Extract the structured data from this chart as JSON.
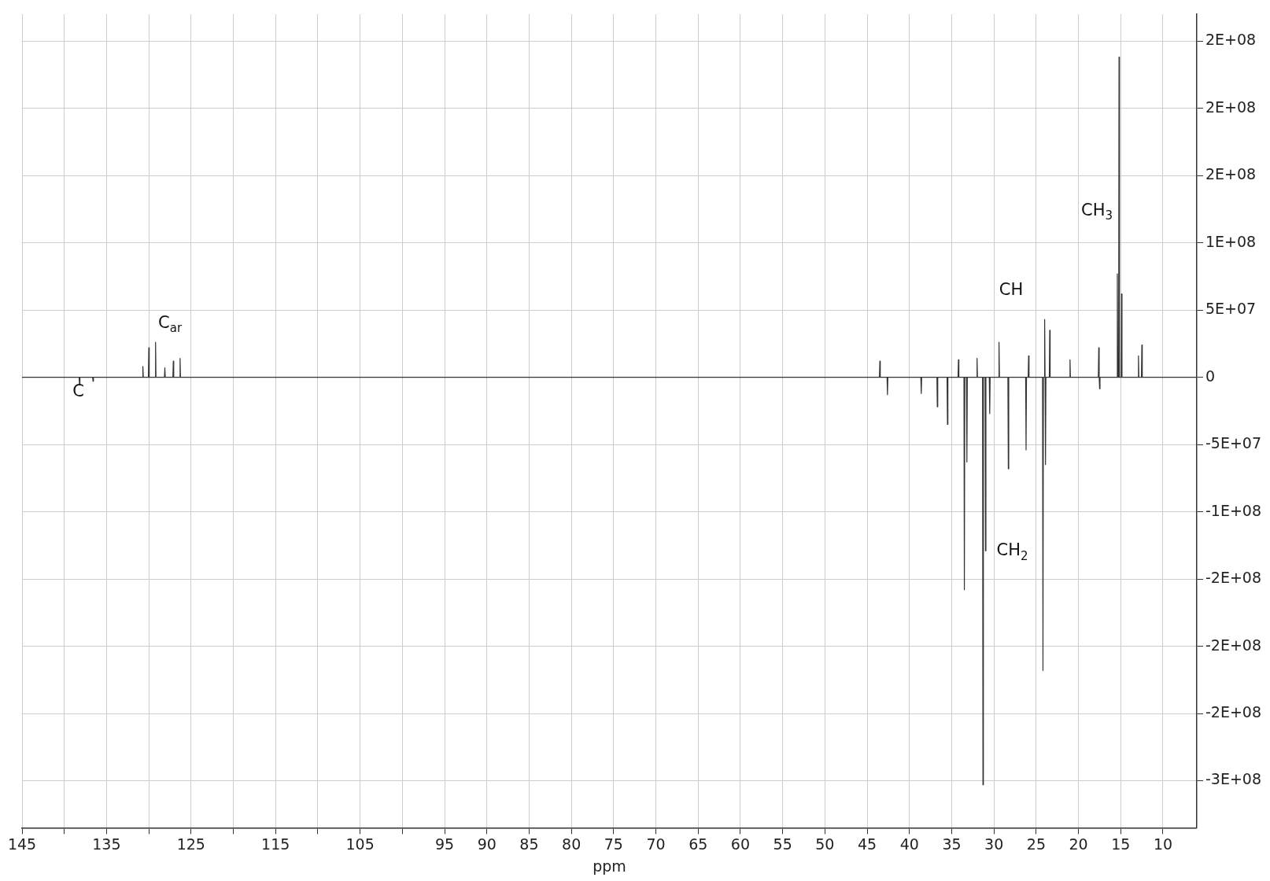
{
  "chart_data": {
    "type": "line",
    "xlabel": "ppm",
    "x": [
      145,
      138.25,
      138.2,
      138.15,
      136.65,
      136.6,
      136.55,
      130.75,
      130.7,
      130.65,
      130.05,
      130.0,
      129.95,
      129.25,
      129.2,
      129.15,
      128.15,
      128.1,
      128.05,
      127.15,
      127.1,
      127.05,
      126.35,
      126.3,
      126.25,
      43.55,
      43.5,
      43.45,
      42.65,
      42.6,
      42.55,
      38.65,
      38.6,
      38.55,
      36.75,
      36.7,
      36.65,
      35.55,
      35.5,
      35.45,
      34.25,
      34.2,
      34.15,
      33.55,
      33.5,
      33.45,
      33.25,
      33.2,
      33.15,
      32.05,
      32.0,
      31.95,
      31.35,
      31.3,
      31.25,
      31.05,
      31.0,
      30.95,
      30.55,
      30.5,
      30.45,
      29.45,
      29.4,
      29.35,
      28.35,
      28.3,
      28.25,
      26.25,
      26.2,
      26.15,
      25.95,
      25.9,
      25.85,
      24.25,
      24.2,
      24.15,
      24.05,
      24.0,
      23.95,
      23.9,
      23.85,
      23.45,
      23.4,
      23.35,
      21.05,
      21.0,
      20.95,
      17.65,
      17.6,
      17.55,
      17.5,
      17.45,
      15.45,
      15.4,
      15.35,
      15.25,
      15.2,
      15.15,
      14.95,
      14.9,
      14.85,
      12.95,
      12.9,
      12.85,
      12.55,
      12.5,
      12.45,
      6
    ],
    "series": [
      {
        "color": "#333333",
        "values": [
          0,
          0,
          -5500000,
          0,
          0,
          -3000000,
          0,
          0,
          8000000,
          0,
          0,
          22000000,
          0,
          0,
          26000000,
          0,
          0,
          7000000,
          0,
          0,
          12000000,
          0,
          0,
          14000000,
          0,
          0,
          12000000,
          0,
          0,
          -13000000,
          0,
          0,
          -12000000,
          0,
          0,
          -22000000,
          0,
          0,
          -35000000,
          0,
          0,
          13000000,
          0,
          0,
          -158000000,
          0,
          0,
          -63000000,
          0,
          0,
          14000000,
          0,
          0,
          -303000000,
          0,
          0,
          -129000000,
          0,
          0,
          -27000000,
          0,
          0,
          26000000,
          0,
          0,
          -68000000,
          0,
          0,
          -54000000,
          0,
          0,
          16000000,
          0,
          0,
          -218000000,
          0,
          0,
          43000000,
          0,
          -65000000,
          0,
          0,
          35000000,
          0,
          0,
          13000000,
          0,
          0,
          22000000,
          0,
          -8500000,
          0,
          0,
          77000000,
          0,
          0,
          238000000,
          0,
          0,
          62000000,
          0,
          0,
          16000000,
          0,
          0,
          24000000,
          0,
          0
        ]
      }
    ],
    "xlim": [
      145,
      6
    ],
    "xticks": [
      145,
      {
        "value": 140,
        "label": null
      },
      135,
      {
        "value": 130,
        "label": null
      },
      125,
      {
        "value": 120,
        "label": null
      },
      115,
      {
        "value": 110,
        "label": null
      },
      105,
      {
        "value": 100,
        "label": null
      },
      95,
      90,
      85,
      80,
      75,
      70,
      65,
      60,
      55,
      50,
      45,
      40,
      35,
      30,
      25,
      20,
      15,
      10
    ],
    "ylim": [
      -335000000,
      270000000
    ],
    "yticks": [
      {
        "value": 250000000,
        "label": "2E+08"
      },
      {
        "value": 200000000,
        "label": "2E+08"
      },
      {
        "value": 150000000,
        "label": "2E+08"
      },
      {
        "value": 100000000,
        "label": "1E+08"
      },
      {
        "value": 50000000,
        "label": "5E+07"
      },
      0,
      {
        "value": -50000000,
        "label": "-5E+07"
      },
      {
        "value": -100000000,
        "label": "-1E+08"
      },
      {
        "value": -150000000,
        "label": "-2E+08"
      },
      {
        "value": -200000000,
        "label": "-2E+08"
      },
      {
        "value": -250000000,
        "label": "-2E+08"
      },
      {
        "value": -300000000,
        "label": "-3E+08"
      }
    ],
    "grid": true,
    "marker": "none",
    "line_style": "solid",
    "legend": false,
    "annotations": [
      "C",
      "C$_{ar}$",
      "CH",
      "CH$_{2}$",
      "CH$_{3}$"
    ]
  }
}
